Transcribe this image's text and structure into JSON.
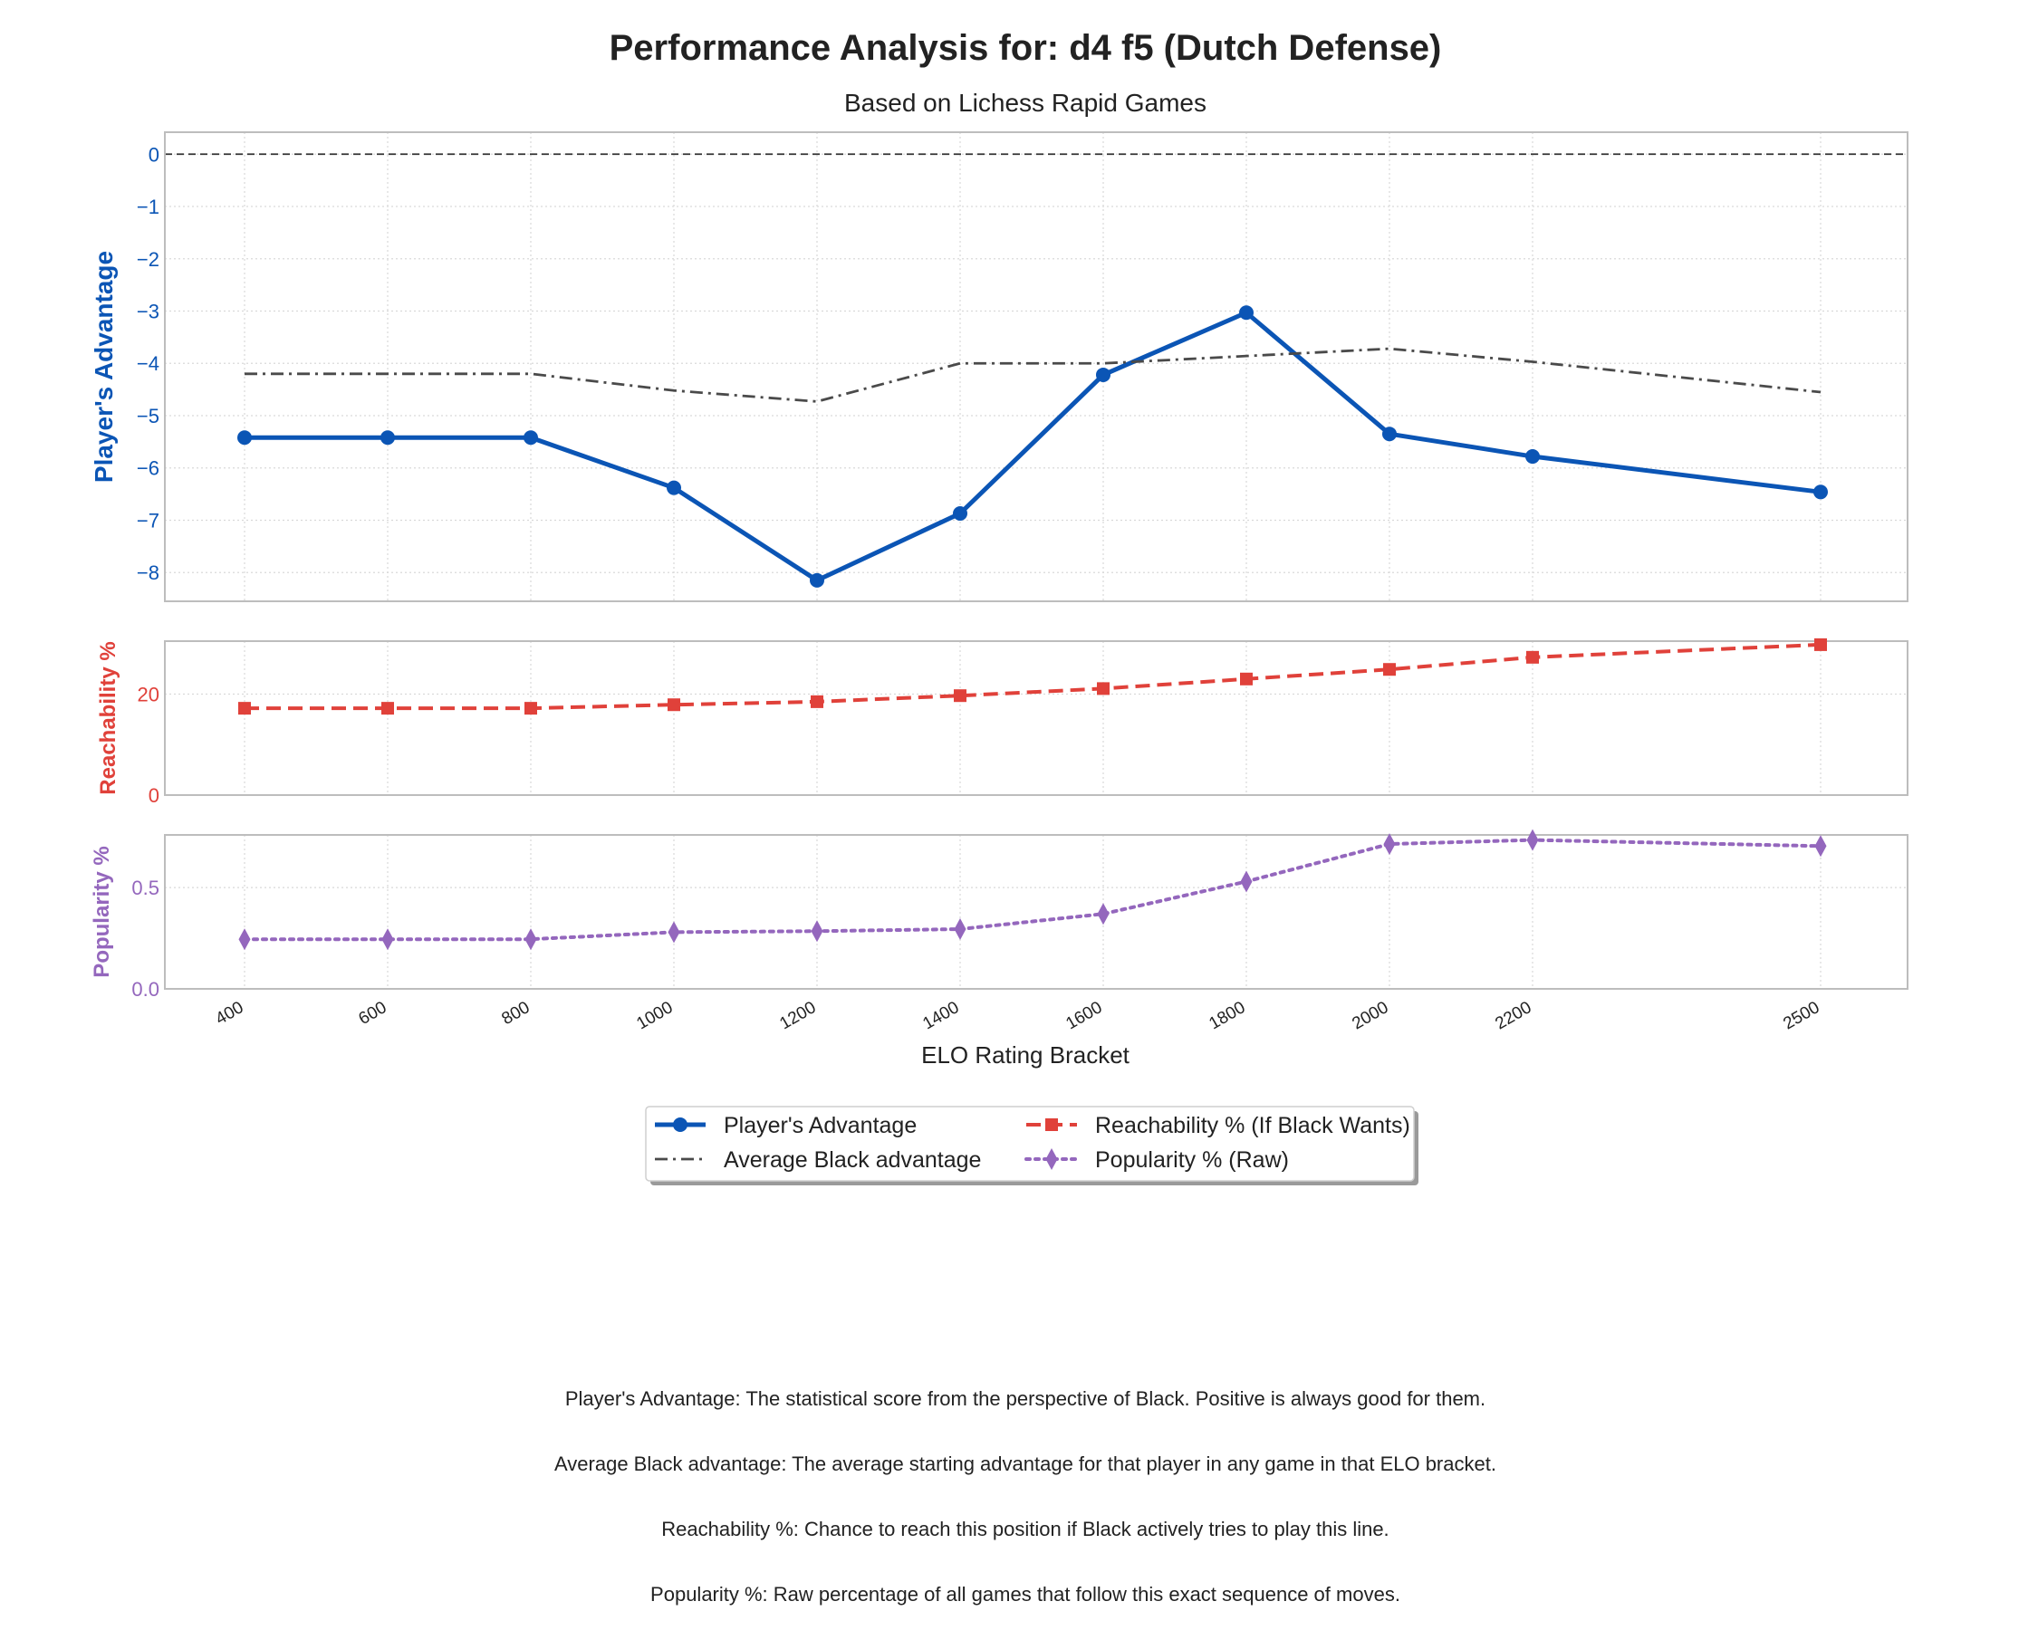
{
  "chart_data": {
    "type": "line",
    "title": "Performance Analysis for: d4 f5 (Dutch Defense)",
    "subtitle": "Based on Lichess Rapid Games",
    "xlabel": "ELO Rating Bracket",
    "x": [
      400,
      600,
      800,
      1000,
      1200,
      1400,
      1600,
      1800,
      2000,
      2200,
      2500
    ],
    "x_tick_labels": [
      "400",
      "600",
      "800",
      "1000",
      "1200",
      "1400",
      "1600",
      "1800",
      "2000",
      "2200",
      "2500"
    ],
    "grid": true,
    "legend_position": "below plots, center",
    "panels": [
      {
        "ylabel": "Player's Advantage",
        "ylabel_color": "#0b55b5",
        "ylim": [
          -8.55,
          0.42
        ],
        "yticks": [
          0,
          -1,
          -2,
          -3,
          -4,
          -5,
          -6,
          -7,
          -8
        ],
        "ytick_labels": [
          "0",
          "−1",
          "−2",
          "−3",
          "−4",
          "−5",
          "−6",
          "−7",
          "−8"
        ],
        "reference_line": 0,
        "series": [
          {
            "name": "Player's Advantage",
            "color": "#0b55b5",
            "style": "solid",
            "marker": "circle",
            "values": [
              -5.42,
              -5.42,
              -5.42,
              -6.38,
              -8.15,
              -6.87,
              -4.22,
              -3.03,
              -5.35,
              -5.78,
              -6.46
            ]
          },
          {
            "name": "Average Black advantage",
            "color": "#4a4a4a",
            "style": "dashdot",
            "marker": "none",
            "values": [
              -4.2,
              -4.2,
              -4.2,
              -4.52,
              -4.73,
              -4.0,
              -4.0,
              -3.86,
              -3.72,
              -3.97,
              -4.55
            ]
          }
        ]
      },
      {
        "ylabel": "Reachability %",
        "ylabel_color": "#e0413a",
        "ylim": [
          0,
          30.5
        ],
        "yticks": [
          0,
          20
        ],
        "ytick_labels": [
          "0",
          "20"
        ],
        "series": [
          {
            "name": "Reachability % (If Black Wants)",
            "color": "#e0413a",
            "style": "dashed",
            "marker": "square",
            "values": [
              17.2,
              17.2,
              17.2,
              17.9,
              18.5,
              19.7,
              21.1,
              23.0,
              24.9,
              27.3,
              29.8
            ]
          }
        ]
      },
      {
        "ylabel": "Popularity %",
        "ylabel_color": "#9467bd",
        "ylim": [
          0,
          0.76
        ],
        "yticks": [
          0.0,
          0.5
        ],
        "ytick_labels": [
          "0.0",
          "0.5"
        ],
        "series": [
          {
            "name": "Popularity % (Raw)",
            "color": "#9467bd",
            "style": "dotted",
            "marker": "diamond",
            "values": [
              0.245,
              0.245,
              0.245,
              0.28,
              0.285,
              0.295,
              0.37,
              0.53,
              0.715,
              0.735,
              0.705
            ]
          }
        ]
      }
    ],
    "legend": [
      {
        "label": "Player's Advantage",
        "color": "#0b55b5",
        "style": "solid",
        "marker": "circle"
      },
      {
        "label": "Reachability % (If Black Wants)",
        "color": "#e0413a",
        "style": "dashed",
        "marker": "square"
      },
      {
        "label": "Average Black advantage",
        "color": "#4a4a4a",
        "style": "dashdot",
        "marker": "none"
      },
      {
        "label": "Popularity % (Raw)",
        "color": "#9467bd",
        "style": "dotted",
        "marker": "diamond"
      }
    ]
  },
  "footnotes": [
    "Player's Advantage: The statistical score from the perspective of Black. Positive is always good for them.",
    "Average Black advantage: The average starting advantage for that player in any game in that ELO bracket.",
    "Reachability %: Chance to reach this position if Black actively tries to play this line.",
    "Popularity %: Raw percentage of all games that follow this exact sequence of moves."
  ]
}
